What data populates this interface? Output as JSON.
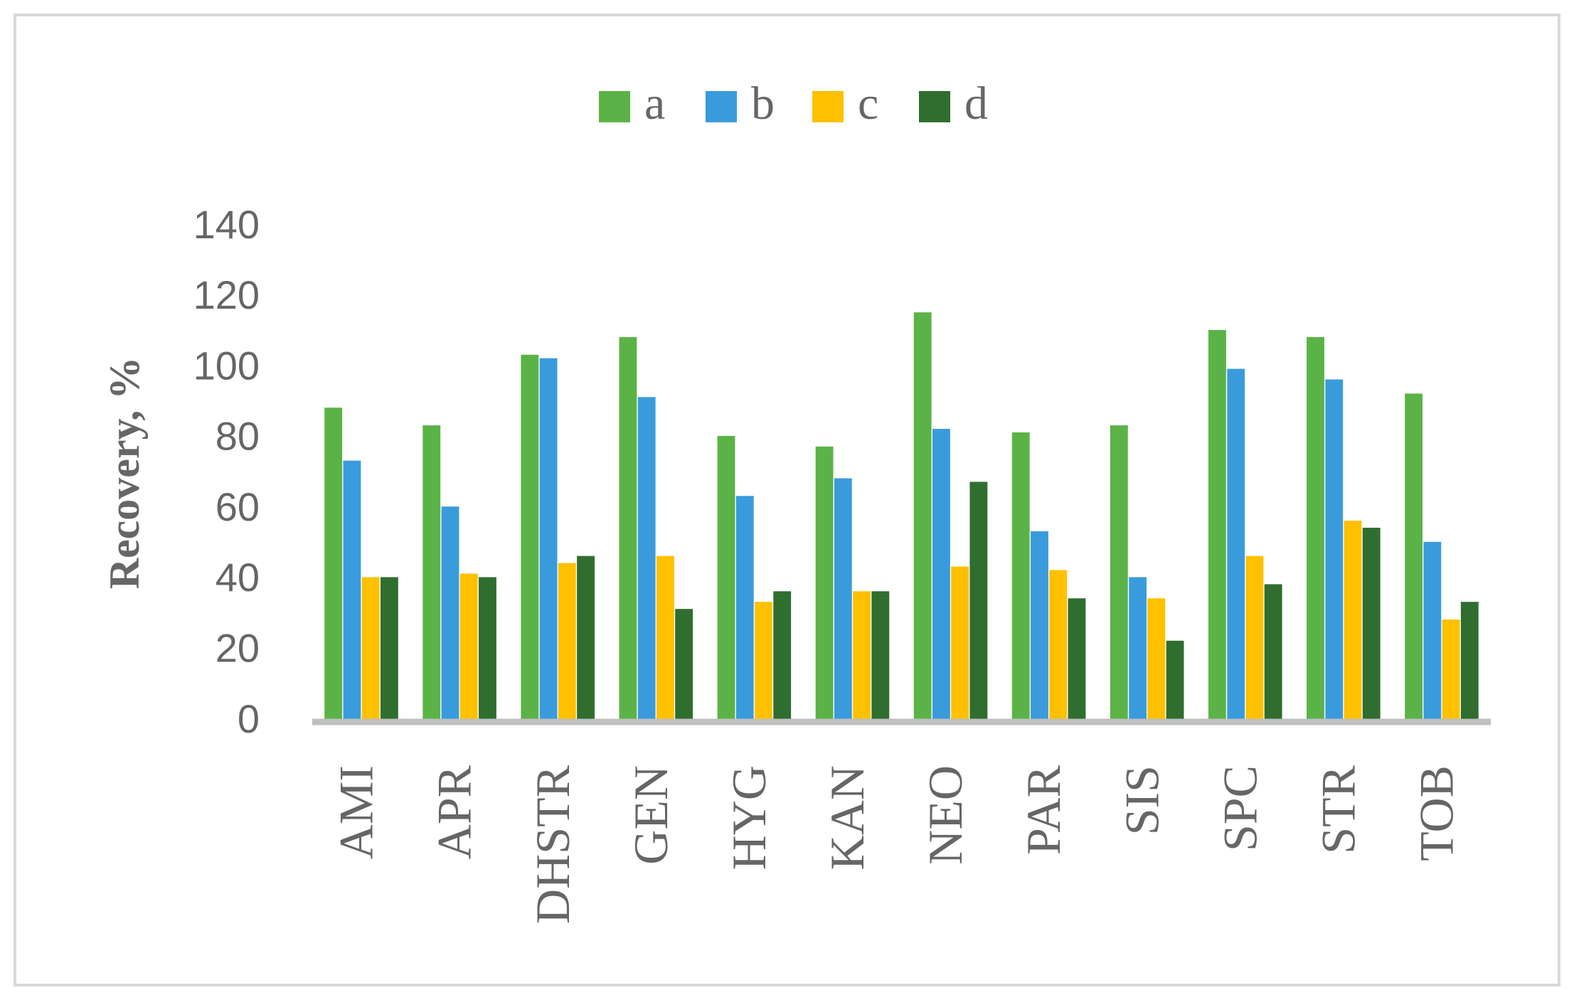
{
  "chart_data": {
    "type": "bar",
    "y_label": "Recovery, %",
    "categories": [
      "AMI",
      "APR",
      "DHSTR",
      "GEN",
      "HYG",
      "KAN",
      "NEO",
      "PAR",
      "SIS",
      "SPC",
      "STR",
      "TOB"
    ],
    "series": [
      {
        "name": "a",
        "color": "#5bb347",
        "values": [
          89,
          84,
          104,
          109,
          81,
          78,
          116,
          82,
          84,
          111,
          109,
          93
        ]
      },
      {
        "name": "b",
        "color": "#3a9bdc",
        "values": [
          74,
          61,
          103,
          92,
          64,
          69,
          83,
          54,
          41,
          100,
          97,
          51
        ]
      },
      {
        "name": "c",
        "color": "#ffc000",
        "values": [
          41,
          42,
          45,
          47,
          34,
          37,
          44,
          43,
          35,
          47,
          57,
          29
        ]
      },
      {
        "name": "d",
        "color": "#2f6e2f",
        "values": [
          41,
          41,
          47,
          32,
          37,
          37,
          68,
          35,
          23,
          39,
          55,
          34
        ]
      }
    ],
    "ylim": [
      0,
      140
    ],
    "yticks": [
      0,
      20,
      40,
      60,
      80,
      100,
      120,
      140
    ],
    "grid": false,
    "legend": "top"
  }
}
